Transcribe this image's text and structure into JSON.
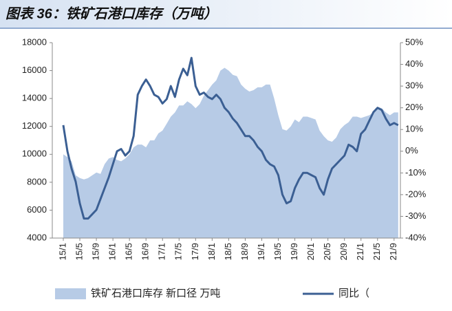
{
  "chart_data": {
    "type": "area-line",
    "title": "图表 36：铁矿石港口库存（万吨）",
    "categories": [
      "15/1",
      null,
      null,
      null,
      "15/5",
      null,
      null,
      null,
      "15/9",
      null,
      null,
      null,
      "16/1",
      null,
      null,
      null,
      "16/5",
      null,
      null,
      null,
      "16/9",
      null,
      null,
      null,
      "17/1",
      null,
      null,
      null,
      "17/5",
      null,
      null,
      null,
      "17/9",
      null,
      null,
      null,
      "18/1",
      null,
      null,
      null,
      "18/5",
      null,
      null,
      null,
      "18/9",
      null,
      null,
      null,
      "19/1",
      null,
      null,
      null,
      "19/5",
      null,
      null,
      null,
      "19/9",
      null,
      null,
      null,
      "20/1",
      null,
      null,
      null,
      "20/5",
      null,
      null,
      null,
      "20/9",
      null,
      null,
      null,
      "21/1",
      null,
      null,
      null,
      "21/5",
      null,
      null,
      null,
      "21/9",
      null
    ],
    "series": [
      {
        "name": "铁矿石港口库存 新口径 万吨",
        "color": "#b7cbe6",
        "values": [
          10000,
          9800,
          9500,
          8500,
          8300,
          8200,
          8300,
          8500,
          8700,
          8600,
          9300,
          9700,
          9800,
          9600,
          9500,
          9700,
          10000,
          10500,
          10700,
          10700,
          10500,
          11000,
          11000,
          11500,
          11700,
          12200,
          12700,
          13000,
          13500,
          13500,
          13800,
          13600,
          13300,
          13600,
          14200,
          14600,
          15000,
          15300,
          16000,
          16200,
          16000,
          15700,
          15600,
          15000,
          14700,
          14500,
          14600,
          14800,
          14800,
          15000,
          15000,
          14000,
          12800,
          11800,
          11700,
          12000,
          12500,
          12300,
          12700,
          12700,
          12600,
          12500,
          11700,
          11300,
          11000,
          10900,
          11200,
          11800,
          12100,
          12300,
          12700,
          12700,
          12600,
          12700,
          12800,
          13000,
          13400,
          13300,
          13000,
          12800,
          13000,
          13000
        ]
      },
      {
        "name": "同比（",
        "color": "#3b5f93",
        "axis": "y2",
        "values": [
          12,
          0,
          -8,
          -14,
          -24,
          -31,
          -31,
          -29,
          -27,
          -22,
          -17,
          -12,
          -6,
          0,
          1,
          -2,
          0,
          7,
          26,
          30,
          33,
          30,
          26,
          25,
          22,
          24,
          30,
          25,
          33,
          38,
          35,
          43,
          30,
          26,
          27,
          25,
          24,
          26,
          24,
          20,
          18,
          15,
          13,
          10,
          7,
          7,
          5,
          2,
          0,
          -4,
          -6,
          -7,
          -11,
          -20,
          -24,
          -23,
          -17,
          -13,
          -10,
          -10,
          -11,
          -12,
          -17,
          -20,
          -13,
          -8,
          -6,
          -4,
          -2,
          3,
          2,
          0,
          8,
          10,
          14,
          18,
          20,
          19,
          15,
          12,
          13,
          12
        ]
      }
    ],
    "ylim": [
      4000,
      18000
    ],
    "yticks": [
      4000,
      6000,
      8000,
      10000,
      12000,
      14000,
      16000,
      18000
    ],
    "y2lim": [
      -40,
      50
    ],
    "y2ticks": [
      {
        "value": -40,
        "label": "-40%"
      },
      {
        "value": -30,
        "label": "-30%"
      },
      {
        "value": -20,
        "label": "-20%"
      },
      {
        "value": -10,
        "label": "-10%"
      },
      {
        "value": 0,
        "label": "0%"
      },
      {
        "value": 10,
        "label": "10%"
      },
      {
        "value": 20,
        "label": "20%"
      },
      {
        "value": 30,
        "label": "30%"
      },
      {
        "value": 40,
        "label": "40%"
      },
      {
        "value": 50,
        "label": "50%"
      }
    ],
    "legend": "bottom"
  }
}
